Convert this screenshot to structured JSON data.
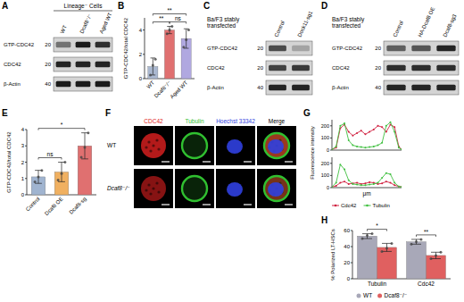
{
  "panel_labels": [
    "A",
    "B",
    "C",
    "D",
    "E",
    "F",
    "G",
    "H"
  ],
  "blots": [
    {
      "title": "Lineage⁻ Cells",
      "lanes": [
        "WT",
        "Dcaf8⁻/⁻",
        "Aged WT"
      ],
      "rows": [
        {
          "label": "GTP-CDC42",
          "mw": 20,
          "bands": [
            0.5,
            0.95,
            0.85
          ]
        },
        {
          "label": "CDC42",
          "mw": 20,
          "bands": [
            0.9,
            0.9,
            0.9
          ]
        },
        {
          "label": "β-Actin",
          "mw": 40,
          "bands": [
            0.95,
            0.95,
            0.95
          ]
        }
      ]
    },
    {
      "title": "Ba/F3 stably transfected",
      "lanes": [
        "Control",
        "Dock11-sg1"
      ],
      "rows": [
        {
          "label": "GTP-CDC42",
          "mw": 20,
          "bands": [
            0.7,
            0.25
          ]
        },
        {
          "label": "CDC42",
          "mw": 20,
          "bands": [
            0.75,
            0.8
          ]
        },
        {
          "label": "β-Actin",
          "mw": 40,
          "bands": [
            0.9,
            0.9
          ]
        }
      ]
    },
    {
      "title": "Ba/F3 stably transfected",
      "lanes": [
        "Control",
        "HA-Dcaf8 OE",
        "Dcaf8-sg3"
      ],
      "rows": [
        {
          "label": "GTP-CDC42",
          "mw": 20,
          "bands": [
            0.6,
            0.65,
            0.9
          ]
        },
        {
          "label": "CDC42",
          "mw": 20,
          "bands": [
            0.85,
            0.85,
            0.85
          ]
        },
        {
          "label": "β-Actin",
          "mw": 40,
          "bands": [
            0.9,
            0.9,
            0.9
          ]
        }
      ]
    }
  ],
  "microscopy": {
    "channels": [
      {
        "name": "CDC42",
        "color": "#e02020"
      },
      {
        "name": "Tubulin",
        "color": "#30c030"
      },
      {
        "name": "Hoechst 33342",
        "color": "#3040e0"
      },
      {
        "name": "Merge"
      }
    ],
    "rows": [
      "WT",
      "Dcaf8⁻/⁻"
    ]
  },
  "chart_data": [
    {
      "type": "bar",
      "ylabel": "GTP-CDC42/total CDC42",
      "categories": [
        "WT",
        "Dcaf8⁻/⁻",
        "Aged WT"
      ],
      "values": [
        1.0,
        4.0,
        3.3
      ],
      "errors": [
        0.7,
        0.3,
        0.8
      ],
      "points": [
        [
          0.3,
          1.1,
          1.6
        ],
        [
          3.7,
          4.0,
          4.3
        ],
        [
          2.6,
          3.2,
          4.0
        ]
      ],
      "colors": [
        "#aab8d0",
        "#e07070",
        "#b0a8e0"
      ],
      "ylim": [
        0,
        5
      ],
      "yticks": [
        0,
        2,
        4
      ],
      "annotations": [
        {
          "text": "**",
          "between": [
            0,
            1
          ]
        },
        {
          "text": "ns",
          "between": [
            1,
            2
          ]
        },
        {
          "text": "**",
          "between": [
            0,
            2
          ]
        }
      ]
    },
    {
      "type": "bar",
      "ylabel": "GTP-CDC42/total CDC42",
      "categories": [
        "Control",
        "Dcaf8 OE",
        "Dcaf8-sg"
      ],
      "values": [
        1.1,
        1.4,
        3.0
      ],
      "errors": [
        0.4,
        0.6,
        0.8
      ],
      "points": [
        [
          0.8,
          1.1,
          1.5
        ],
        [
          0.9,
          1.3,
          2.0
        ],
        [
          2.3,
          2.9,
          3.8
        ]
      ],
      "colors": [
        "#a0b4d0",
        "#f0b060",
        "#e07070"
      ],
      "ylim": [
        0,
        4
      ],
      "yticks": [
        0,
        1,
        2,
        3,
        4
      ],
      "annotations": [
        {
          "text": "ns",
          "between": [
            0,
            1
          ]
        },
        {
          "text": "*",
          "between": [
            0,
            2
          ]
        }
      ]
    },
    {
      "type": "line",
      "ylabel": "Fluorescence intensity",
      "x": [
        0,
        0.6,
        1.2,
        1.8,
        2.4,
        3,
        3.6,
        4.2,
        4.8,
        5.4,
        6,
        6.6,
        7.2,
        7.8,
        8.4,
        9,
        9.6,
        10
      ],
      "xlim": [
        0,
        10
      ],
      "ylim": [
        0,
        250
      ],
      "yticks": [
        0,
        100,
        200
      ],
      "tick_labels": "y",
      "series": [
        {
          "color": "#d02040",
          "marker": "circle",
          "values": [
            5,
            20,
            180,
            210,
            150,
            120,
            140,
            160,
            130,
            150,
            170,
            200,
            190,
            150,
            210,
            190,
            30,
            5
          ]
        },
        {
          "color": "#40c040",
          "marker": "circle",
          "values": [
            5,
            30,
            200,
            220,
            80,
            40,
            30,
            25,
            20,
            25,
            30,
            40,
            60,
            200,
            230,
            150,
            20,
            5
          ]
        }
      ]
    },
    {
      "type": "line",
      "xlabel": "μm",
      "x": [
        0,
        0.6,
        1.2,
        1.8,
        2.4,
        3,
        3.6,
        4.2,
        4.8,
        5.4,
        6,
        6.6,
        7.2,
        7.8,
        8.4,
        9,
        9.6,
        10
      ],
      "xlim": [
        0,
        10
      ],
      "ylim": [
        0,
        250
      ],
      "yticks": [
        0,
        100,
        200
      ],
      "tick_labels": "y",
      "legend": "bottom",
      "series": [
        {
          "name": "Cdc42",
          "color": "#d02040",
          "marker": "circle",
          "values": [
            5,
            15,
            40,
            50,
            30,
            35,
            40,
            30,
            35,
            45,
            40,
            30,
            35,
            50,
            40,
            20,
            10,
            5
          ]
        },
        {
          "name": "Tubulin",
          "color": "#40c040",
          "marker": "circle",
          "values": [
            5,
            40,
            190,
            150,
            60,
            30,
            25,
            20,
            20,
            25,
            30,
            40,
            80,
            120,
            110,
            40,
            10,
            5
          ]
        }
      ]
    },
    {
      "type": "bar",
      "ylabel": "% Polarized LT-HSCs",
      "categories": [
        "Tubulin",
        "Cdc42"
      ],
      "ylim": [
        0,
        60
      ],
      "yticks": [
        0,
        20,
        40,
        60
      ],
      "legend": "bottom",
      "series": [
        {
          "name": "WT",
          "color": "#a8a8b8",
          "values": [
            53,
            46
          ],
          "errors": [
            3,
            3
          ],
          "points": [
            [
              50,
              54,
              56
            ],
            [
              43,
              46,
              49
            ]
          ]
        },
        {
          "name": "Dcaf8⁻/⁻",
          "color": "#e06060",
          "values": [
            39,
            29
          ],
          "errors": [
            5,
            4
          ],
          "points": [
            [
              34,
              38,
              44
            ],
            [
              25,
              29,
              33
            ]
          ]
        }
      ],
      "annotations": [
        {
          "text": "*",
          "category": 0,
          "between": [
            0,
            1
          ]
        },
        {
          "text": "**",
          "category": 1,
          "between": [
            0,
            1
          ]
        }
      ]
    }
  ]
}
